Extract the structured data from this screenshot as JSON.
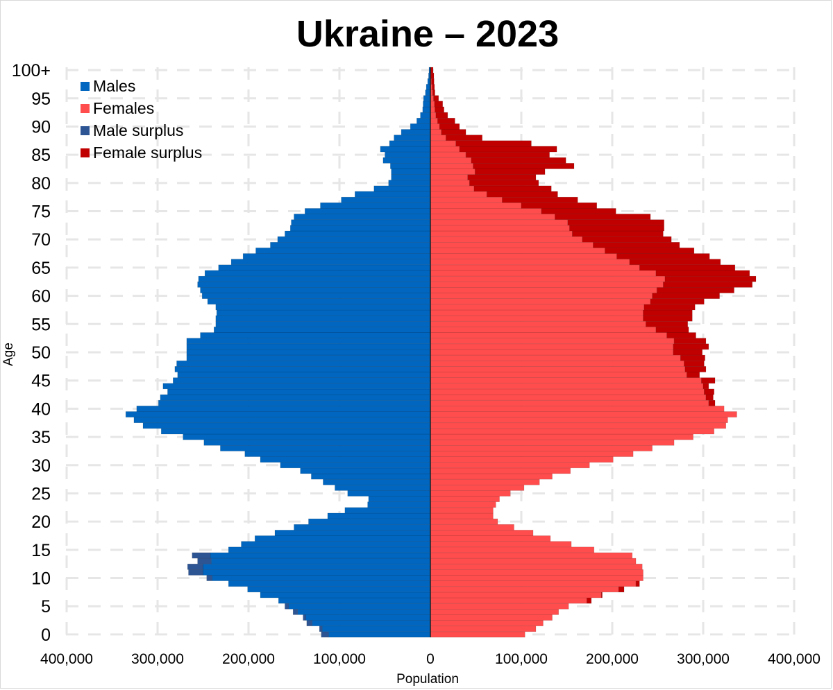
{
  "colors": {
    "males": "#0066bf",
    "females": "#ff4d4d",
    "male_surplus": "#2e5593",
    "female_surplus": "#c00000",
    "grid": "#e6e6e6"
  },
  "chart_data": {
    "type": "bar",
    "subtype": "population-pyramid",
    "title": "Ukraine – 2023",
    "xlabel": "Population",
    "ylabel": "Age",
    "xlim": [
      -400000,
      400000
    ],
    "x_ticks": [
      "400,000",
      "300,000",
      "200,000",
      "100,000",
      "0",
      "100,000",
      "200,000",
      "300,000",
      "400,000"
    ],
    "y_ticks": [
      "0",
      "5",
      "10",
      "15",
      "20",
      "25",
      "30",
      "35",
      "40",
      "45",
      "50",
      "55",
      "60",
      "65",
      "70",
      "75",
      "80",
      "85",
      "90",
      "95",
      "100+"
    ],
    "legend_position": "top-left",
    "legend": [
      "Males",
      "Females",
      "Male surplus",
      "Female surplus"
    ],
    "categories": [
      "0",
      "1",
      "2",
      "3",
      "4",
      "5",
      "6",
      "7",
      "8",
      "9",
      "10",
      "11",
      "12",
      "13",
      "14",
      "15",
      "16",
      "17",
      "18",
      "19",
      "20",
      "21",
      "22",
      "23",
      "24",
      "25",
      "26",
      "27",
      "28",
      "29",
      "30",
      "31",
      "32",
      "33",
      "34",
      "35",
      "36",
      "37",
      "38",
      "39",
      "40",
      "41",
      "42",
      "43",
      "44",
      "45",
      "46",
      "47",
      "48",
      "49",
      "50",
      "51",
      "52",
      "53",
      "54",
      "55",
      "56",
      "57",
      "58",
      "59",
      "60",
      "61",
      "62",
      "63",
      "64",
      "65",
      "66",
      "67",
      "68",
      "69",
      "70",
      "71",
      "72",
      "73",
      "74",
      "75",
      "76",
      "77",
      "78",
      "79",
      "80",
      "81",
      "82",
      "83",
      "84",
      "85",
      "86",
      "87",
      "88",
      "89",
      "90",
      "91",
      "92",
      "93",
      "94",
      "95",
      "96",
      "97",
      "98",
      "99",
      "100+"
    ],
    "series": [
      {
        "name": "Males",
        "values": [
          112000,
          119000,
          130000,
          137000,
          146000,
          156000,
          167000,
          187000,
          201000,
          222000,
          240000,
          250000,
          250000,
          241000,
          242000,
          222000,
          208000,
          193000,
          171000,
          150000,
          134000,
          113000,
          94000,
          69000,
          68000,
          91000,
          105000,
          118000,
          131000,
          143000,
          165000,
          187000,
          204000,
          231000,
          249000,
          272000,
          296000,
          316000,
          326000,
          335000,
          323000,
          299000,
          297000,
          289000,
          294000,
          283000,
          278000,
          281000,
          279000,
          268000,
          268000,
          268000,
          268000,
          253000,
          238000,
          236000,
          236000,
          235000,
          236000,
          245000,
          251000,
          253000,
          256000,
          255000,
          248000,
          233000,
          219000,
          206000,
          192000,
          176000,
          168000,
          160000,
          154000,
          153000,
          150000,
          138000,
          121000,
          98000,
          83000,
          62000,
          46000,
          43000,
          43000,
          44000,
          52000,
          50000,
          55000,
          45000,
          40000,
          32000,
          22000,
          15000,
          11000,
          8500,
          8000,
          7500,
          5500,
          4500,
          3000,
          2000,
          1500
        ]
      },
      {
        "name": "Females",
        "values": [
          104000,
          116000,
          124000,
          134000,
          141000,
          152000,
          172000,
          188000,
          207000,
          226000,
          234000,
          234000,
          233000,
          226000,
          222000,
          180000,
          155000,
          132000,
          113000,
          92000,
          74000,
          69000,
          69000,
          72000,
          76000,
          88000,
          103000,
          120000,
          134000,
          154000,
          175000,
          201000,
          223000,
          244000,
          268000,
          289000,
          312000,
          325000,
          327000,
          337000,
          323000,
          306000,
          303000,
          301000,
          300000,
          298000,
          282000,
          280000,
          279000,
          275000,
          267000,
          267000,
          268000,
          260000,
          248000,
          237000,
          234000,
          234000,
          235000,
          242000,
          244000,
          249000,
          256000,
          258000,
          248000,
          230000,
          219000,
          205000,
          192000,
          179000,
          167000,
          156000,
          153000,
          151000,
          137000,
          122000,
          100000,
          79000,
          62000,
          48000,
          43000,
          41000,
          49000,
          47000,
          45000,
          39000,
          32000,
          28000,
          17000,
          12000,
          10000,
          8000,
          6000,
          5000,
          4500,
          3500,
          2500,
          2000,
          1200,
          800,
          500
        ]
      },
      {
        "name": "Male surplus",
        "values": [
          8000,
          3000,
          6000,
          3000,
          5000,
          4000,
          0,
          0,
          0,
          0,
          6000,
          16000,
          17000,
          15000,
          20000,
          0,
          0,
          0,
          0,
          0,
          0,
          0,
          0,
          0,
          0,
          0,
          0,
          0,
          0,
          0,
          0,
          0,
          0,
          0,
          0,
          0,
          0,
          0,
          0,
          0,
          0,
          0,
          0,
          0,
          0,
          0,
          0,
          0,
          0,
          0,
          0,
          0,
          0,
          0,
          0,
          0,
          0,
          0,
          0,
          0,
          0,
          0,
          0,
          0,
          0,
          0,
          0,
          0,
          0,
          0,
          0,
          0,
          0,
          0,
          0,
          0,
          0,
          0,
          0,
          0,
          0,
          0,
          0,
          0,
          0,
          0,
          0,
          0,
          0,
          0,
          0,
          0,
          0,
          0,
          0,
          0,
          0,
          0,
          0,
          0,
          0
        ]
      },
      {
        "name": "Female surplus",
        "values": [
          0,
          0,
          0,
          0,
          0,
          0,
          5000,
          1000,
          6000,
          4000,
          0,
          0,
          0,
          0,
          0,
          0,
          0,
          0,
          0,
          0,
          0,
          0,
          0,
          0,
          0,
          0,
          0,
          0,
          0,
          0,
          0,
          0,
          0,
          0,
          0,
          0,
          0,
          0,
          0,
          0,
          0,
          7000,
          8000,
          11000,
          6000,
          15000,
          14000,
          23000,
          22000,
          27000,
          32000,
          39000,
          35000,
          32000,
          36000,
          46000,
          54000,
          54000,
          56000,
          59000,
          74000,
          85000,
          98000,
          100000,
          103000,
          105000,
          100000,
          102000,
          98000,
          95000,
          98000,
          100000,
          104000,
          106000,
          105000,
          82000,
          83000,
          83000,
          78000,
          85000,
          76000,
          75000,
          77000,
          111000,
          104000,
          92000,
          107000,
          83000,
          40000,
          27000,
          22000,
          19000,
          13000,
          10000,
          9000,
          5500,
          2500,
          2500,
          2800,
          3000,
          2500
        ]
      }
    ]
  }
}
